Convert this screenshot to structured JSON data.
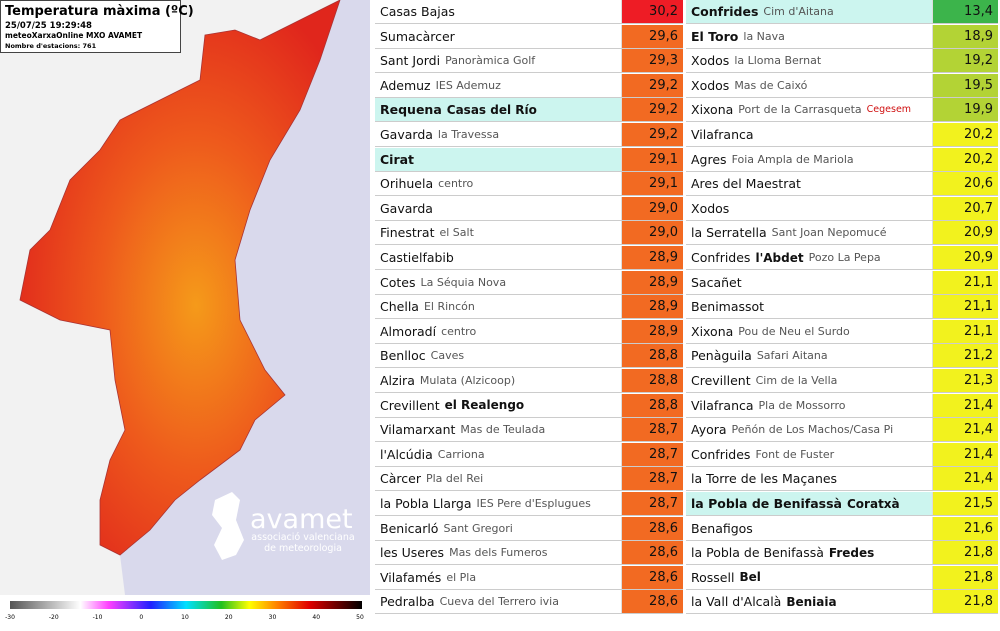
{
  "map": {
    "title": "Temperatura màxima (ºC)",
    "timestamp": "25/07/25 19:29:48",
    "source": "meteoXarxaOnline MXO AVAMET",
    "stations": "Nombre d'estacions: 761",
    "scale": [
      -30,
      -20,
      -10,
      0,
      10,
      20,
      30,
      40,
      50
    ]
  },
  "logo": {
    "name": "avamet",
    "line1": "associació valenciana",
    "line2": "de meteorologia"
  },
  "tables": [
    {
      "rows": [
        {
          "name": "Casas Bajas",
          "value": "30,2",
          "color": "#ee1c25"
        },
        {
          "name": "Sumacàrcer",
          "value": "29,6",
          "color": "#f26a22"
        },
        {
          "name": "Sant Jordi",
          "detail": "Panoràmica Golf",
          "value": "29,3",
          "color": "#f26a22"
        },
        {
          "name": "Ademuz",
          "detail": "IES Ademuz",
          "value": "29,2",
          "color": "#f26a22"
        },
        {
          "name": "Requena",
          "bold": "Casas del Río",
          "value": "29,2",
          "color": "#f26a22",
          "highlight": true,
          "strong": true
        },
        {
          "name": "Gavarda",
          "detail": "la Travessa",
          "value": "29,2",
          "color": "#f26a22"
        },
        {
          "name": "Cirat",
          "value": "29,1",
          "color": "#f26a22",
          "highlight": true,
          "strong": true
        },
        {
          "name": "Orihuela",
          "detail": "centro",
          "value": "29,1",
          "color": "#f26a22"
        },
        {
          "name": "Gavarda",
          "value": "29,0",
          "color": "#f26a22"
        },
        {
          "name": "Finestrat",
          "detail": "el Salt",
          "value": "29,0",
          "color": "#f26a22"
        },
        {
          "name": "Castielfabib",
          "value": "28,9",
          "color": "#f26a22"
        },
        {
          "name": "Cotes",
          "detail": "La Séquia Nova",
          "value": "28,9",
          "color": "#f26a22"
        },
        {
          "name": "Chella",
          "detail": "El Rincón",
          "value": "28,9",
          "color": "#f26a22"
        },
        {
          "name": "Almoradí",
          "detail": "centro",
          "value": "28,9",
          "color": "#f26a22"
        },
        {
          "name": "Benlloc",
          "detail": "Caves",
          "value": "28,8",
          "color": "#f26a22"
        },
        {
          "name": "Alzira",
          "detail": "Mulata (Alzicoop)",
          "value": "28,8",
          "color": "#f26a22"
        },
        {
          "name": "Crevillent",
          "bold": "el Realengo",
          "value": "28,8",
          "color": "#f26a22"
        },
        {
          "name": "Vilamarxant",
          "detail": "Mas de Teulada",
          "value": "28,7",
          "color": "#f26a22"
        },
        {
          "name": "l'Alcúdia",
          "detail": "Carriona",
          "value": "28,7",
          "color": "#f26a22"
        },
        {
          "name": "Càrcer",
          "detail": "Pla del Rei",
          "value": "28,7",
          "color": "#f26a22"
        },
        {
          "name": "la Pobla Llarga",
          "detail": "IES Pere d'Esplugues",
          "value": "28,7",
          "color": "#f26a22"
        },
        {
          "name": "Benicarló",
          "detail": "Sant Gregori",
          "value": "28,6",
          "color": "#f26a22"
        },
        {
          "name": "les Useres",
          "detail": "Mas dels Fumeros",
          "value": "28,6",
          "color": "#f26a22"
        },
        {
          "name": "Vilafamés",
          "detail": "el Pla",
          "value": "28,6",
          "color": "#f26a22"
        },
        {
          "name": "Pedralba",
          "detail": "Cueva del Terrero ivia",
          "value": "28,6",
          "color": "#f26a22"
        }
      ]
    },
    {
      "rows": [
        {
          "name": "Confrides",
          "detail": "Cim d'Aitana",
          "value": "13,4",
          "color": "#3cb44b",
          "highlight": true,
          "strong": true
        },
        {
          "name": "El Toro",
          "detail": "la Nava",
          "value": "18,9",
          "color": "#b3d335",
          "strong": true
        },
        {
          "name": "Xodos",
          "detail": "la Lloma Bernat",
          "value": "19,2",
          "color": "#b3d335"
        },
        {
          "name": "Xodos",
          "detail": "Mas de Caixó",
          "value": "19,5",
          "color": "#b3d335"
        },
        {
          "name": "Xixona",
          "detail": "Port de la Carrasqueta",
          "tag": "Cegesem",
          "value": "19,9",
          "color": "#b3d335"
        },
        {
          "name": "Vilafranca",
          "value": "20,2",
          "color": "#f2f21e"
        },
        {
          "name": "Agres",
          "detail": "Foia Ampla de Mariola",
          "value": "20,2",
          "color": "#f2f21e"
        },
        {
          "name": "Ares del Maestrat",
          "value": "20,6",
          "color": "#f2f21e"
        },
        {
          "name": "Xodos",
          "value": "20,7",
          "color": "#f2f21e"
        },
        {
          "name": "la Serratella",
          "detail": "Sant Joan Nepomucé",
          "value": "20,9",
          "color": "#f2f21e"
        },
        {
          "name": "Confrides",
          "bold": "l'Abdet",
          "detail": "Pozo La Pepa",
          "value": "20,9",
          "color": "#f2f21e"
        },
        {
          "name": "Sacañet",
          "value": "21,1",
          "color": "#f2f21e"
        },
        {
          "name": "Benimassot",
          "value": "21,1",
          "color": "#f2f21e"
        },
        {
          "name": "Xixona",
          "detail": "Pou de Neu el Surdo",
          "value": "21,1",
          "color": "#f2f21e"
        },
        {
          "name": "Penàguila",
          "detail": "Safari Aitana",
          "value": "21,2",
          "color": "#f2f21e"
        },
        {
          "name": "Crevillent",
          "detail": "Cim de la Vella",
          "value": "21,3",
          "color": "#f2f21e"
        },
        {
          "name": "Vilafranca",
          "detail": "Pla de Mossorro",
          "value": "21,4",
          "color": "#f2f21e"
        },
        {
          "name": "Ayora",
          "detail": "Peñón de Los Machos/Casa Pi",
          "value": "21,4",
          "color": "#f2f21e"
        },
        {
          "name": "Confrides",
          "detail": "Font de Fuster",
          "value": "21,4",
          "color": "#f2f21e"
        },
        {
          "name": "la Torre de les Maçanes",
          "value": "21,4",
          "color": "#f2f21e"
        },
        {
          "name": "la Pobla de Benifassà",
          "bold": "Coratxà",
          "value": "21,5",
          "color": "#f2f21e",
          "highlight": true,
          "strong": true
        },
        {
          "name": "Benafigos",
          "value": "21,6",
          "color": "#f2f21e"
        },
        {
          "name": "la Pobla de Benifassà",
          "bold": "Fredes",
          "value": "21,8",
          "color": "#f2f21e"
        },
        {
          "name": "Rossell",
          "bold": "Bel",
          "value": "21,8",
          "color": "#f2f21e"
        },
        {
          "name": "la Vall d'Alcalà",
          "bold": "Beniaia",
          "value": "21,8",
          "color": "#f2f21e"
        }
      ]
    }
  ]
}
